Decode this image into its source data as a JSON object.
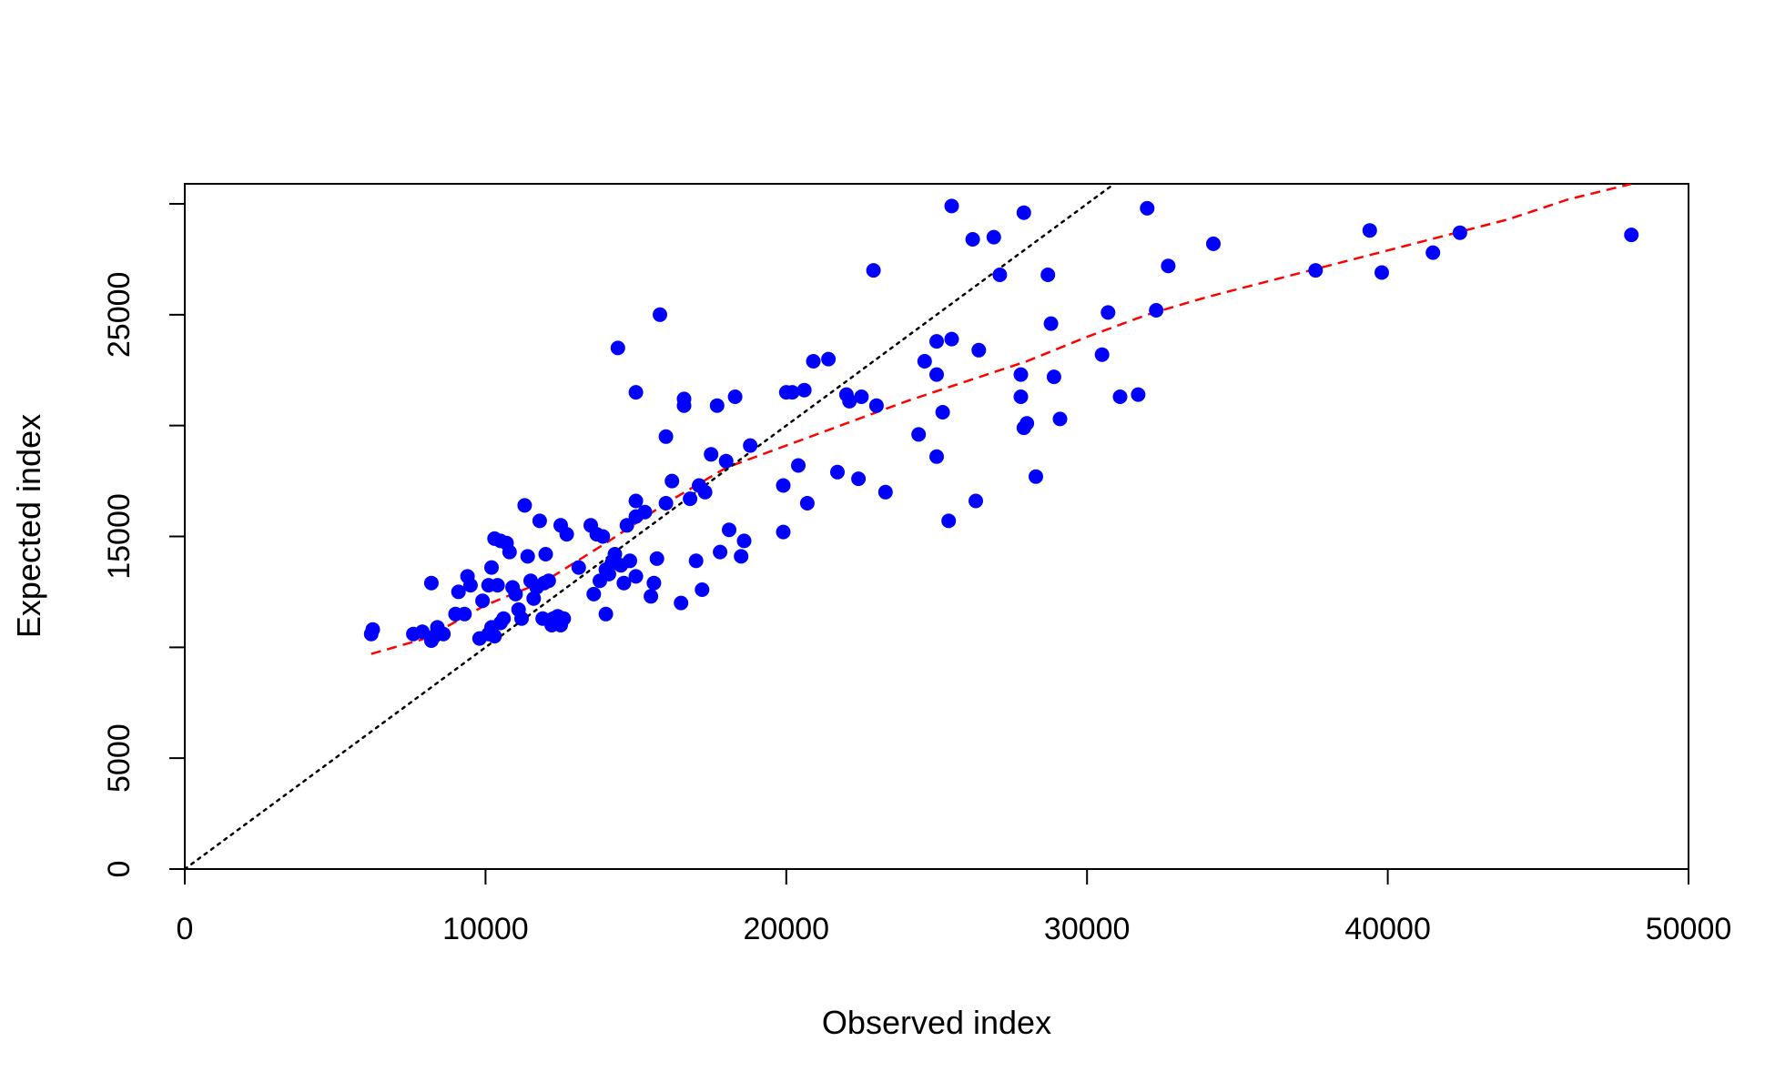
{
  "chart_data": {
    "type": "scatter",
    "title": "",
    "xlabel": "Observed index",
    "ylabel": "Expected index",
    "xlim": [
      0,
      50000
    ],
    "ylim": [
      0,
      30000
    ],
    "xticks": [
      0,
      10000,
      20000,
      30000,
      40000,
      50000
    ],
    "xtick_labels": [
      "0",
      "10000",
      "20000",
      "30000",
      "40000",
      "50000"
    ],
    "yticks": [
      0,
      5000,
      10000,
      15000,
      20000,
      25000,
      30000
    ],
    "ytick_labels": [
      "0",
      "5000",
      "",
      "15000",
      "",
      "25000",
      ""
    ],
    "grid": false,
    "colors": {
      "points": "#0000FF",
      "fit": "#FF0000",
      "reference": "#000000"
    },
    "series": [
      {
        "type": "scatter",
        "points": [
          [
            6200,
            10600
          ],
          [
            6250,
            10800
          ],
          [
            7600,
            10600
          ],
          [
            7900,
            10700
          ],
          [
            8200,
            10300
          ],
          [
            8300,
            10500
          ],
          [
            8600,
            10600
          ],
          [
            8200,
            12900
          ],
          [
            8400,
            10900
          ],
          [
            9000,
            11500
          ],
          [
            9100,
            12500
          ],
          [
            9300,
            11500
          ],
          [
            9400,
            13200
          ],
          [
            9500,
            12800
          ],
          [
            9800,
            10400
          ],
          [
            9900,
            12100
          ],
          [
            10100,
            10600
          ],
          [
            10200,
            10900
          ],
          [
            10300,
            10500
          ],
          [
            10500,
            11100
          ],
          [
            10600,
            11300
          ],
          [
            10100,
            12800
          ],
          [
            10200,
            13600
          ],
          [
            10400,
            12800
          ],
          [
            10300,
            14900
          ],
          [
            10500,
            14800
          ],
          [
            10700,
            14700
          ],
          [
            10800,
            14300
          ],
          [
            10900,
            12700
          ],
          [
            11000,
            12400
          ],
          [
            11100,
            11700
          ],
          [
            11200,
            11300
          ],
          [
            11300,
            16400
          ],
          [
            11400,
            14100
          ],
          [
            11500,
            13000
          ],
          [
            11600,
            12200
          ],
          [
            11700,
            12700
          ],
          [
            11800,
            15700
          ],
          [
            11900,
            11300
          ],
          [
            11950,
            12900
          ],
          [
            12000,
            14200
          ],
          [
            12100,
            13000
          ],
          [
            12200,
            11000
          ],
          [
            12250,
            11300
          ],
          [
            12400,
            11400
          ],
          [
            12500,
            11000
          ],
          [
            12500,
            15500
          ],
          [
            12600,
            11300
          ],
          [
            12700,
            15100
          ],
          [
            13100,
            13600
          ],
          [
            13500,
            15500
          ],
          [
            13600,
            12400
          ],
          [
            13700,
            15100
          ],
          [
            13800,
            13000
          ],
          [
            13900,
            15000
          ],
          [
            14000,
            13500
          ],
          [
            14000,
            11500
          ],
          [
            14100,
            13300
          ],
          [
            14200,
            13800
          ],
          [
            14300,
            14200
          ],
          [
            14400,
            23500
          ],
          [
            14500,
            13700
          ],
          [
            14600,
            12900
          ],
          [
            14700,
            15500
          ],
          [
            14800,
            13900
          ],
          [
            15000,
            13200
          ],
          [
            15000,
            16600
          ],
          [
            15000,
            15900
          ],
          [
            15000,
            21500
          ],
          [
            15300,
            16100
          ],
          [
            15500,
            12300
          ],
          [
            15600,
            12900
          ],
          [
            15700,
            14000
          ],
          [
            15800,
            25000
          ],
          [
            16000,
            16500
          ],
          [
            16000,
            19500
          ],
          [
            16200,
            17500
          ],
          [
            16500,
            12000
          ],
          [
            16600,
            20900
          ],
          [
            16600,
            21200
          ],
          [
            16800,
            16700
          ],
          [
            17000,
            13900
          ],
          [
            17100,
            17300
          ],
          [
            17200,
            12600
          ],
          [
            17300,
            17000
          ],
          [
            17500,
            18700
          ],
          [
            17700,
            20900
          ],
          [
            17800,
            14300
          ],
          [
            18000,
            18400
          ],
          [
            18100,
            15300
          ],
          [
            18300,
            21300
          ],
          [
            18500,
            14100
          ],
          [
            18600,
            14800
          ],
          [
            18800,
            19100
          ],
          [
            19900,
            17300
          ],
          [
            19900,
            15200
          ],
          [
            20000,
            21500
          ],
          [
            20200,
            21500
          ],
          [
            20400,
            18200
          ],
          [
            20600,
            21600
          ],
          [
            20700,
            16500
          ],
          [
            20900,
            22900
          ],
          [
            21400,
            23000
          ],
          [
            21700,
            17900
          ],
          [
            22000,
            21400
          ],
          [
            22100,
            21100
          ],
          [
            22400,
            17600
          ],
          [
            22500,
            21300
          ],
          [
            22900,
            27000
          ],
          [
            23000,
            20900
          ],
          [
            23300,
            17000
          ],
          [
            24400,
            19600
          ],
          [
            24600,
            22900
          ],
          [
            25000,
            18600
          ],
          [
            25000,
            23800
          ],
          [
            25000,
            22300
          ],
          [
            25200,
            20600
          ],
          [
            25400,
            15700
          ],
          [
            25500,
            29900
          ],
          [
            25500,
            23900
          ],
          [
            26200,
            28400
          ],
          [
            26300,
            16600
          ],
          [
            26400,
            23400
          ],
          [
            26900,
            28500
          ],
          [
            27100,
            26800
          ],
          [
            27800,
            22300
          ],
          [
            27800,
            21300
          ],
          [
            27900,
            19900
          ],
          [
            27900,
            29600
          ],
          [
            28000,
            20100
          ],
          [
            28300,
            17700
          ],
          [
            28700,
            26800
          ],
          [
            28800,
            24600
          ],
          [
            28900,
            22200
          ],
          [
            29100,
            20300
          ],
          [
            30500,
            23200
          ],
          [
            30700,
            25100
          ],
          [
            31100,
            21300
          ],
          [
            31700,
            21400
          ],
          [
            32000,
            29800
          ],
          [
            32300,
            25200
          ],
          [
            32700,
            27200
          ],
          [
            34200,
            28200
          ],
          [
            37600,
            27000
          ],
          [
            39400,
            28800
          ],
          [
            39800,
            26900
          ],
          [
            41500,
            27800
          ],
          [
            42400,
            28700
          ],
          [
            48100,
            28600
          ]
        ]
      },
      {
        "type": "line",
        "style": "dashed",
        "points": [
          [
            6200,
            9700
          ],
          [
            8000,
            10400
          ],
          [
            10000,
            11900
          ],
          [
            12000,
            13000
          ],
          [
            14000,
            14700
          ],
          [
            16000,
            16500
          ],
          [
            18000,
            18100
          ],
          [
            20000,
            19100
          ],
          [
            22000,
            20100
          ],
          [
            24000,
            21100
          ],
          [
            26000,
            22000
          ],
          [
            28000,
            22900
          ],
          [
            30000,
            24000
          ],
          [
            32000,
            25000
          ],
          [
            34000,
            25800
          ],
          [
            36000,
            26500
          ],
          [
            38000,
            27200
          ],
          [
            40000,
            27900
          ],
          [
            42000,
            28600
          ],
          [
            44000,
            29300
          ],
          [
            46000,
            30200
          ],
          [
            48100,
            30900
          ]
        ]
      },
      {
        "type": "line",
        "style": "dotted",
        "points": [
          [
            0,
            0
          ],
          [
            31200,
            31200
          ]
        ]
      }
    ]
  }
}
